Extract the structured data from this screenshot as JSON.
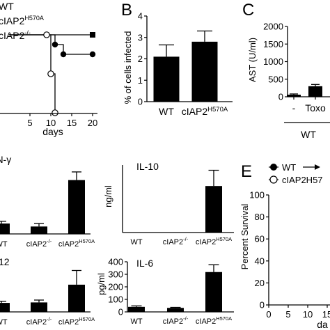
{
  "panel_letters": {
    "b": "B",
    "c": "C",
    "e": "E"
  },
  "chart_data": [
    {
      "id": "A",
      "type": "line",
      "title": "",
      "xlabel": "days",
      "ylabel": "",
      "xlim": [
        0,
        20
      ],
      "ylim": [
        0,
        100
      ],
      "x_ticks": [
        5,
        10,
        15,
        20
      ],
      "legend": {
        "placement": "top-left",
        "entries": [
          "WT",
          "cIAP2H570A",
          "cIAP2-/-"
        ]
      },
      "series": [
        {
          "name": "WT",
          "marker": "square-filled",
          "x": [
            0,
            20
          ],
          "y": [
            100,
            100
          ]
        },
        {
          "name": "cIAP2H570A",
          "marker": "circle-filled",
          "x": [
            9,
            11,
            13,
            20
          ],
          "y": [
            100,
            87.5,
            75,
            75
          ]
        },
        {
          "name": "cIAP2-/-",
          "marker": "circle-open",
          "x": [
            9,
            10,
            11
          ],
          "y": [
            100,
            50,
            0
          ]
        }
      ]
    },
    {
      "id": "B",
      "type": "bar",
      "title": "",
      "xlabel": "",
      "ylabel": "% of cells infected",
      "ylim": [
        0,
        4
      ],
      "y_ticks": [
        0,
        1,
        2,
        3,
        4
      ],
      "categories": [
        "WT",
        "cIAP2H570A"
      ],
      "values": [
        2.1,
        2.8
      ],
      "errors": [
        0.55,
        0.5
      ]
    },
    {
      "id": "C",
      "type": "bar",
      "title": "",
      "xlabel": "WT",
      "ylabel": "AST (U/ml)",
      "ylim": [
        0,
        2000
      ],
      "y_ticks": [
        0,
        500,
        1000,
        1500,
        2000
      ],
      "categories": [
        "-",
        "Toxo"
      ],
      "values": [
        60,
        300
      ],
      "errors": [
        20,
        50
      ]
    },
    {
      "id": "D-IFN",
      "type": "bar",
      "title": "IFN-γ",
      "categories": [
        "WT",
        "cIAP2-/-",
        "cIAP2H570A"
      ],
      "values": [
        0.28,
        0.2,
        1.45
      ],
      "errors": [
        0.06,
        0.08,
        0.22
      ],
      "ylim": [
        0,
        1.8
      ]
    },
    {
      "id": "D-IL12",
      "type": "bar",
      "title": "12",
      "categories": [
        "WT",
        "cIAP2-/-",
        "cIAP2H570A"
      ],
      "values": [
        0.38,
        0.4,
        1.15
      ],
      "errors": [
        0.07,
        0.1,
        0.6
      ],
      "ylim": [
        0,
        2
      ]
    },
    {
      "id": "D-IL10",
      "type": "bar",
      "title": "IL-10",
      "xlabel": "",
      "ylabel": "ng/ml",
      "categories": [
        "WT",
        "cIAP2-/-",
        "cIAP2H570A"
      ],
      "values": [
        0,
        0,
        3.1
      ],
      "errors": [
        0,
        0,
        1.05
      ],
      "ylim": [
        0,
        4.5
      ]
    },
    {
      "id": "D-IL6",
      "type": "bar",
      "title": "IL-6",
      "xlabel": "",
      "ylabel": "pg/ml",
      "ylim": [
        0,
        400
      ],
      "y_ticks": [
        0,
        100,
        200,
        300,
        400
      ],
      "categories": [
        "WT",
        "cIAP2-/-",
        "cIAP2H570A"
      ],
      "values": [
        40,
        32,
        318
      ],
      "errors": [
        8,
        4,
        58
      ]
    },
    {
      "id": "E",
      "type": "line",
      "title": "",
      "xlabel": "da",
      "ylabel": "Percent Survival",
      "xlim": [
        0,
        20
      ],
      "ylim": [
        0,
        100
      ],
      "x_ticks": [
        0,
        5,
        10,
        15
      ],
      "y_ticks": [
        0,
        20,
        40,
        60,
        80,
        100
      ],
      "legend": {
        "placement": "top",
        "entries": [
          "WT",
          "cIAP2H57"
        ]
      },
      "series": []
    }
  ]
}
